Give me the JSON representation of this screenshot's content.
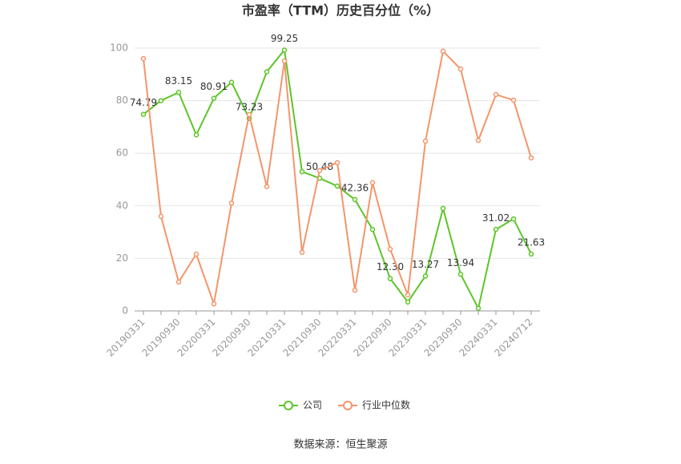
{
  "chart_data": {
    "type": "line",
    "title": "市盈率（TTM）历史百分位（%）",
    "source": "数据来源：恒生聚源",
    "categories": [
      "20190331",
      null,
      "20190930",
      null,
      "20200331",
      null,
      "20200930",
      null,
      "20210331",
      null,
      "20210930",
      null,
      "20220331",
      null,
      "20220930",
      null,
      "20230331",
      null,
      "20230930",
      null,
      "20240331",
      null,
      "20240712"
    ],
    "series": [
      {
        "name": "公司",
        "color": "#5cc627",
        "values": [
          74.79,
          80,
          83.15,
          67,
          80.91,
          87,
          73.23,
          91,
          99.25,
          53,
          50.48,
          47.5,
          42.36,
          31,
          12.3,
          3.4,
          13.27,
          39,
          13.94,
          1,
          31.02,
          35,
          21.63
        ],
        "value_labels": [
          "74.79",
          null,
          "83.15",
          null,
          "80.91",
          null,
          "73.23",
          null,
          "99.25",
          null,
          "50.48",
          null,
          "42.36",
          null,
          "12.30",
          null,
          "13.27",
          null,
          "13.94",
          null,
          "31.02",
          null,
          "21.63"
        ]
      },
      {
        "name": "行业中位数",
        "color": "#f4956a",
        "values": [
          96,
          36,
          11,
          21.6,
          2.7,
          41,
          74.7,
          47.3,
          95.1,
          22.3,
          53.4,
          56.4,
          7.9,
          48.8,
          23.5,
          6.1,
          64.6,
          98.8,
          92,
          64.9,
          82.3,
          80.2,
          58.2
        ]
      }
    ],
    "ylim": [
      0,
      100
    ],
    "yticks": [
      0,
      20,
      40,
      60,
      80,
      100
    ],
    "grid": true,
    "legend": "bottom"
  }
}
